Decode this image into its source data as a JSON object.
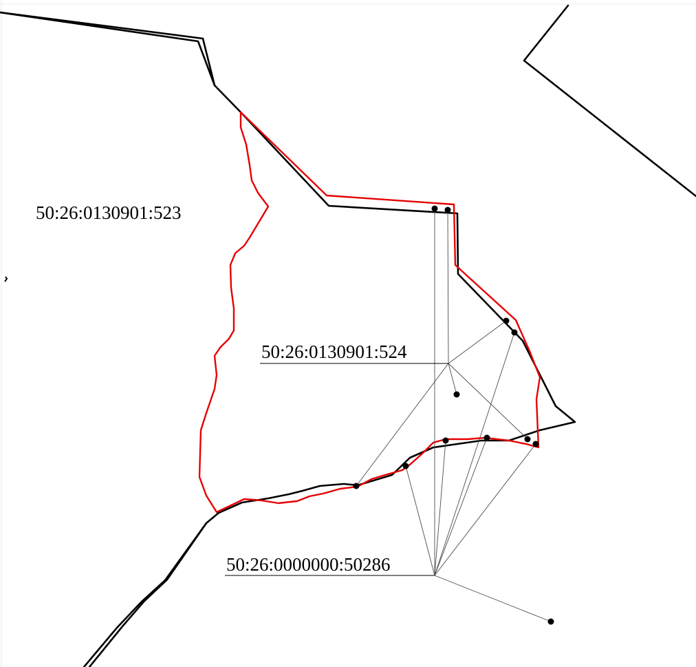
{
  "labels": {
    "parcel_523": "50:26:0130901:523",
    "parcel_524": "50:26:0130901:524",
    "parcel_50286": "50:26:0000000:50286"
  },
  "colors": {
    "background": "#ffffff",
    "existing_boundary": "#000000",
    "new_boundary": "#e60000",
    "callout_line": "#4a4a4a",
    "point": "#000000"
  }
}
